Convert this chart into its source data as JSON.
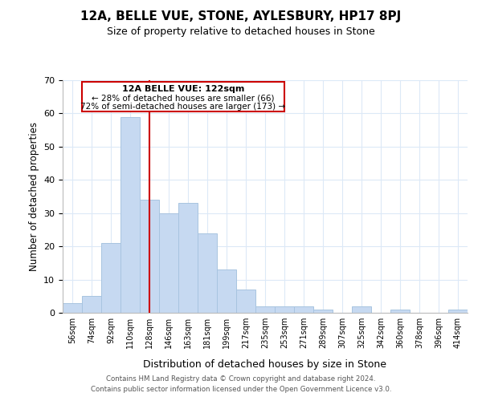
{
  "title": "12A, BELLE VUE, STONE, AYLESBURY, HP17 8PJ",
  "subtitle": "Size of property relative to detached houses in Stone",
  "xlabel": "Distribution of detached houses by size in Stone",
  "ylabel": "Number of detached properties",
  "bar_labels": [
    "56sqm",
    "74sqm",
    "92sqm",
    "110sqm",
    "128sqm",
    "146sqm",
    "163sqm",
    "181sqm",
    "199sqm",
    "217sqm",
    "235sqm",
    "253sqm",
    "271sqm",
    "289sqm",
    "307sqm",
    "325sqm",
    "342sqm",
    "360sqm",
    "378sqm",
    "396sqm",
    "414sqm"
  ],
  "bar_values": [
    3,
    5,
    21,
    59,
    34,
    30,
    33,
    24,
    13,
    7,
    2,
    2,
    2,
    1,
    0,
    2,
    0,
    1,
    0,
    0,
    1
  ],
  "bar_color": "#c6d9f1",
  "bar_edge_color": "#a8c4e0",
  "marker_index": 4,
  "marker_color": "#cc0000",
  "ylim": [
    0,
    70
  ],
  "yticks": [
    0,
    10,
    20,
    30,
    40,
    50,
    60,
    70
  ],
  "annotation_title": "12A BELLE VUE: 122sqm",
  "annotation_line1": "← 28% of detached houses are smaller (66)",
  "annotation_line2": "72% of semi-detached houses are larger (173) →",
  "footer_line1": "Contains HM Land Registry data © Crown copyright and database right 2024.",
  "footer_line2": "Contains public sector information licensed under the Open Government Licence v3.0.",
  "bg_color": "#ffffff",
  "grid_color": "#dce9f7"
}
